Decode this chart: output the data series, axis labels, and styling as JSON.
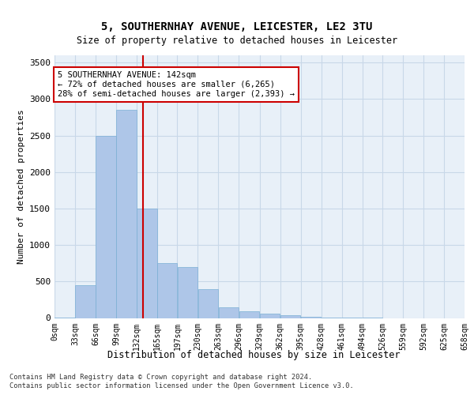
{
  "title1": "5, SOUTHERNHAY AVENUE, LEICESTER, LE2 3TU",
  "title2": "Size of property relative to detached houses in Leicester",
  "xlabel": "Distribution of detached houses by size in Leicester",
  "ylabel": "Number of detached properties",
  "bin_labels": [
    "0sqm",
    "33sqm",
    "66sqm",
    "99sqm",
    "132sqm",
    "165sqm",
    "197sqm",
    "230sqm",
    "263sqm",
    "296sqm",
    "329sqm",
    "362sqm",
    "395sqm",
    "428sqm",
    "461sqm",
    "494sqm",
    "526sqm",
    "559sqm",
    "592sqm",
    "625sqm",
    "658sqm"
  ],
  "bin_edges": [
    0,
    33,
    66,
    99,
    132,
    165,
    197,
    230,
    263,
    296,
    329,
    362,
    395,
    428,
    461,
    494,
    526,
    559,
    592,
    625,
    658
  ],
  "bar_values": [
    5,
    450,
    2500,
    2850,
    1500,
    750,
    700,
    400,
    150,
    90,
    55,
    35,
    20,
    5,
    2,
    1,
    0,
    0,
    0,
    0
  ],
  "bar_color": "#aec6e8",
  "bar_edge_color": "#7aafd4",
  "grid_color": "#c8d8e8",
  "background_color": "#e8f0f8",
  "red_line_x": 142,
  "annotation_text": "5 SOUTHERNHAY AVENUE: 142sqm\n← 72% of detached houses are smaller (6,265)\n28% of semi-detached houses are larger (2,393) →",
  "annotation_box_color": "#ffffff",
  "annotation_box_edge": "#cc0000",
  "red_line_color": "#cc0000",
  "footer1": "Contains HM Land Registry data © Crown copyright and database right 2024.",
  "footer2": "Contains public sector information licensed under the Open Government Licence v3.0.",
  "ylim": [
    0,
    3600
  ],
  "yticks": [
    0,
    500,
    1000,
    1500,
    2000,
    2500,
    3000,
    3500
  ]
}
